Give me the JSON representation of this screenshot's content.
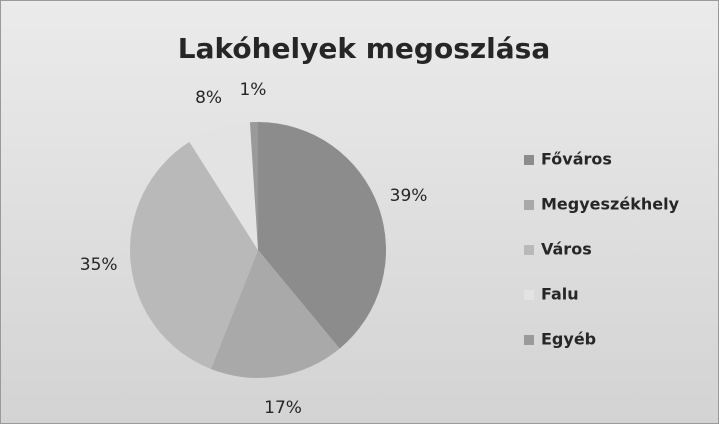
{
  "chart_data": {
    "type": "pie",
    "title": "Lakóhelyek megoszlása",
    "categories": [
      "Főváros",
      "Megyeszékhely",
      "Város",
      "Falu",
      "Egyéb"
    ],
    "values": [
      39,
      17,
      35,
      8,
      1
    ],
    "value_labels": [
      "39%",
      "17%",
      "35%",
      "8%",
      "1%"
    ],
    "colors": [
      "#8c8c8c",
      "#a9a9a9",
      "#b9b9b9",
      "#e3e3e3",
      "#9a9a9a"
    ],
    "legend": "right"
  }
}
